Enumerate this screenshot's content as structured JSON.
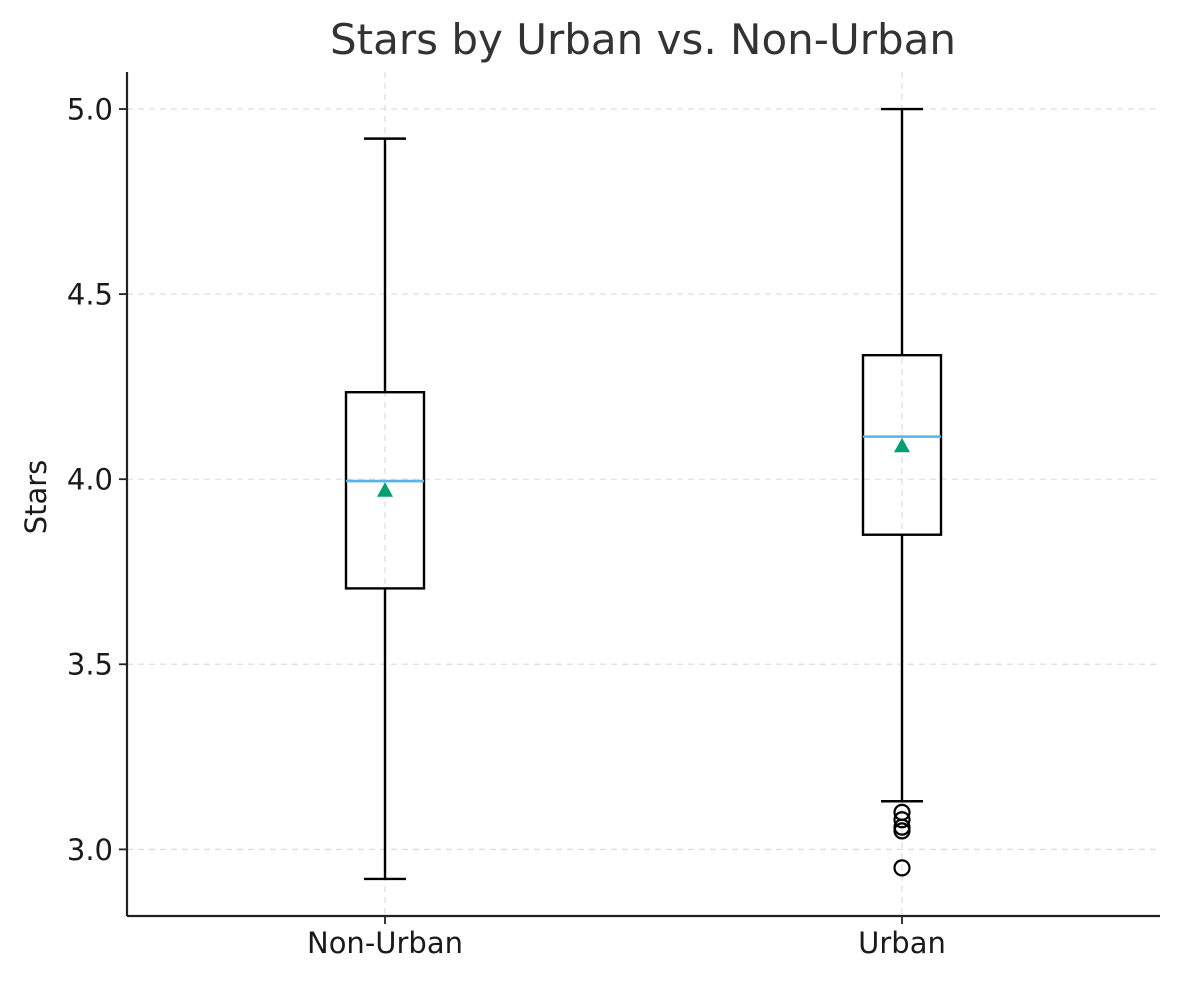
{
  "chart_data": {
    "type": "box",
    "title": "Stars by Urban vs. Non-Urban",
    "xlabel": "",
    "ylabel": "Stars",
    "ylim": [
      2.82,
      5.1
    ],
    "yticks": [
      3.0,
      3.5,
      4.0,
      4.5,
      5.0
    ],
    "ytick_labels": [
      "3.0",
      "3.5",
      "4.0",
      "4.5",
      "5.0"
    ],
    "grid": true,
    "categories": [
      "Non-Urban",
      "Urban"
    ],
    "boxes": [
      {
        "category": "Non-Urban",
        "whisker_low": 2.92,
        "q1": 3.705,
        "median": 3.995,
        "q3": 4.235,
        "whisker_high": 4.92,
        "mean": 3.97,
        "outliers": []
      },
      {
        "category": "Urban",
        "whisker_low": 3.13,
        "q1": 3.85,
        "median": 4.115,
        "q3": 4.335,
        "whisker_high": 5.0,
        "mean": 4.09,
        "outliers": [
          3.1,
          3.08,
          3.06,
          3.05,
          2.95
        ]
      }
    ],
    "colors": {
      "median": "#56B4E9",
      "mean": "#009E73",
      "box": "#000000",
      "grid": "#dddddd",
      "title": "#333333"
    }
  }
}
